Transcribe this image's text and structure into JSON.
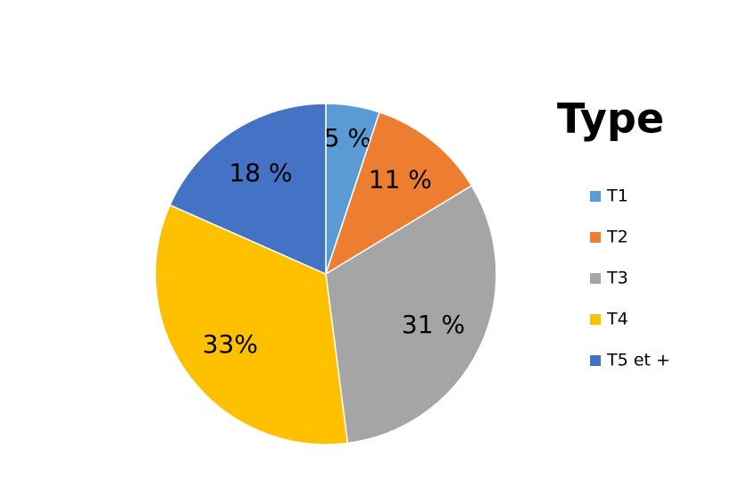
{
  "chart_data": {
    "type": "pie",
    "legend_title": "Type",
    "categories": [
      "T1",
      "T2",
      "T3",
      "T4",
      "T5 et +"
    ],
    "values": [
      5,
      11,
      31,
      33,
      18
    ],
    "value_labels": [
      "5 %",
      "11 %",
      "31 %",
      "33%",
      "18 %"
    ],
    "colors": [
      "#5b9bd5",
      "#ed7d31",
      "#a5a5a5",
      "#ffc000",
      "#4472c4"
    ],
    "legend": "right"
  }
}
